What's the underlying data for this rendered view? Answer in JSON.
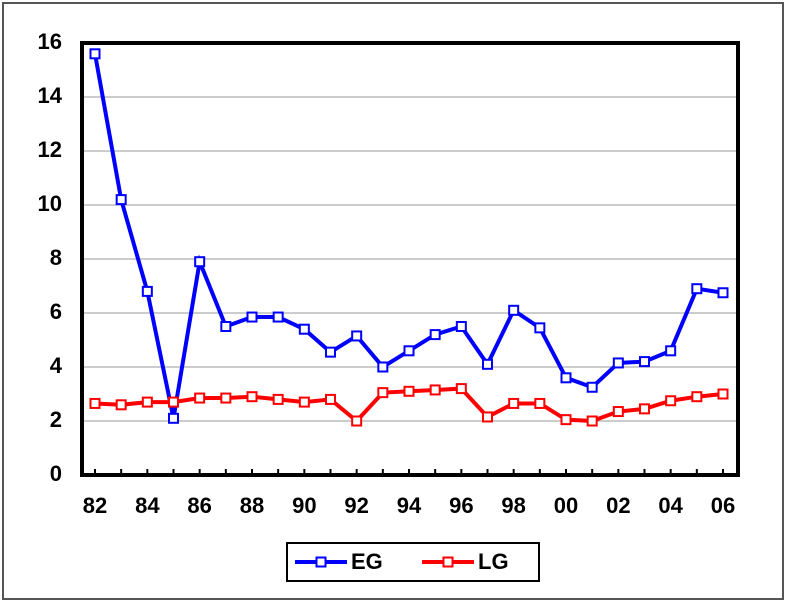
{
  "chart_data": {
    "type": "line",
    "categories": [
      "82",
      null,
      "84",
      null,
      "86",
      null,
      "88",
      null,
      "90",
      null,
      "92",
      null,
      "94",
      null,
      "96",
      null,
      "98",
      null,
      "00",
      null,
      "02",
      null,
      "04",
      null,
      "06"
    ],
    "series": [
      {
        "name": "EG",
        "color": "#0000ff",
        "values": [
          15.6,
          10.2,
          6.8,
          2.1,
          7.9,
          5.5,
          5.85,
          5.85,
          5.4,
          4.55,
          5.15,
          4.0,
          4.6,
          5.2,
          5.5,
          4.1,
          6.1,
          5.45,
          3.6,
          3.25,
          4.15,
          4.2,
          4.6,
          6.9,
          6.75
        ]
      },
      {
        "name": "LG",
        "color": "#ff0000",
        "values": [
          2.65,
          2.6,
          2.7,
          2.7,
          2.85,
          2.85,
          2.9,
          2.8,
          2.7,
          2.8,
          2.0,
          3.05,
          3.1,
          3.15,
          3.2,
          2.15,
          2.65,
          2.65,
          2.05,
          2.0,
          2.35,
          2.45,
          2.75,
          2.9,
          3.0
        ]
      }
    ],
    "ylim": [
      0,
      16
    ],
    "yticks": [
      0,
      2,
      4,
      6,
      8,
      10,
      12,
      14,
      16
    ],
    "grid": true,
    "legend": "bottom"
  }
}
